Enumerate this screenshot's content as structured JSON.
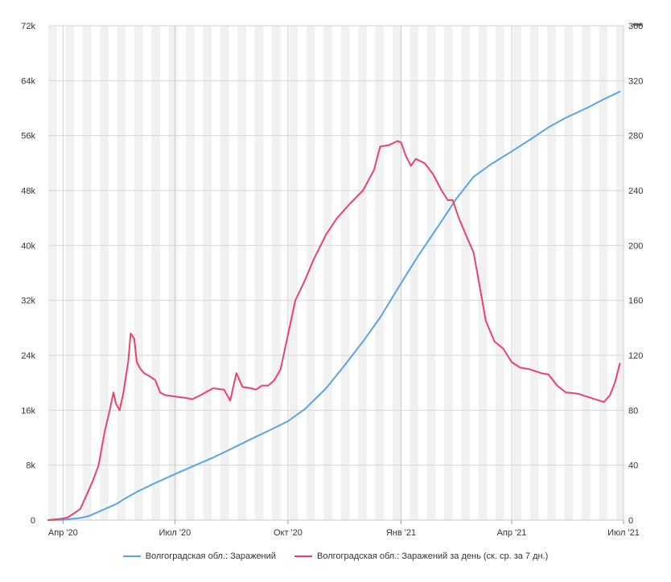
{
  "chart_data": {
    "type": "line",
    "x_tick_labels": [
      "Апр '20",
      "Июл '20",
      "Окт '20",
      "Янв '21",
      "Апр '21",
      "Июл '21"
    ],
    "x_tick_dates": [
      "2020-04-01",
      "2020-07-01",
      "2020-10-01",
      "2021-01-01",
      "2021-04-01",
      "2021-07-01"
    ],
    "y_left": {
      "ticks": [
        "0",
        "8k",
        "16k",
        "24k",
        "32k",
        "40k",
        "48k",
        "56k",
        "64k",
        "72k"
      ],
      "range": [
        0,
        72000
      ]
    },
    "y_right": {
      "ticks": [
        "0",
        "40",
        "80",
        "120",
        "160",
        "200",
        "240",
        "280",
        "320",
        "360"
      ],
      "range": [
        0,
        360
      ]
    },
    "grid": true,
    "legend_position": "bottom",
    "series": [
      {
        "name": "Волгоградская обл.: Заражений",
        "axis": "left",
        "color": "#5ba4e3",
        "points": [
          [
            "2020-03-20",
            0
          ],
          [
            "2020-04-01",
            50
          ],
          [
            "2020-04-15",
            300
          ],
          [
            "2020-04-22",
            600
          ],
          [
            "2020-05-01",
            1300
          ],
          [
            "2020-05-15",
            2400
          ],
          [
            "2020-05-20",
            3000
          ],
          [
            "2020-06-01",
            4200
          ],
          [
            "2020-06-15",
            5400
          ],
          [
            "2020-07-01",
            6700
          ],
          [
            "2020-07-15",
            7800
          ],
          [
            "2020-08-01",
            9100
          ],
          [
            "2020-08-15",
            10300
          ],
          [
            "2020-09-01",
            11800
          ],
          [
            "2020-09-15",
            13000
          ],
          [
            "2020-10-01",
            14400
          ],
          [
            "2020-10-15",
            16200
          ],
          [
            "2020-11-01",
            19200
          ],
          [
            "2020-11-15",
            22300
          ],
          [
            "2020-12-01",
            26000
          ],
          [
            "2020-12-15",
            29500
          ],
          [
            "2021-01-01",
            34500
          ],
          [
            "2021-01-15",
            38500
          ],
          [
            "2021-02-01",
            43000
          ],
          [
            "2021-02-15",
            46800
          ],
          [
            "2021-03-01",
            50000
          ],
          [
            "2021-03-15",
            51800
          ],
          [
            "2021-04-01",
            53700
          ],
          [
            "2021-04-15",
            55300
          ],
          [
            "2021-05-01",
            57200
          ],
          [
            "2021-05-15",
            58600
          ],
          [
            "2021-06-01",
            60000
          ],
          [
            "2021-06-15",
            61300
          ],
          [
            "2021-06-28",
            62400
          ]
        ]
      },
      {
        "name": "Волгоградская обл.: Заражений за день (ск. ср. за 7 дн.)",
        "axis": "right",
        "color": "#e8436a",
        "points": [
          [
            "2020-03-20",
            0
          ],
          [
            "2020-03-31",
            1
          ],
          [
            "2020-04-05",
            2
          ],
          [
            "2020-04-10",
            5
          ],
          [
            "2020-04-15",
            8
          ],
          [
            "2020-04-20",
            18
          ],
          [
            "2020-04-25",
            28
          ],
          [
            "2020-04-30",
            40
          ],
          [
            "2020-05-05",
            65
          ],
          [
            "2020-05-09",
            80
          ],
          [
            "2020-05-12",
            93
          ],
          [
            "2020-05-14",
            85
          ],
          [
            "2020-05-17",
            80
          ],
          [
            "2020-05-20",
            92
          ],
          [
            "2020-05-24",
            115
          ],
          [
            "2020-05-26",
            136
          ],
          [
            "2020-05-29",
            132
          ],
          [
            "2020-05-31",
            115
          ],
          [
            "2020-06-03",
            110
          ],
          [
            "2020-06-06",
            107
          ],
          [
            "2020-06-10",
            105
          ],
          [
            "2020-06-15",
            102
          ],
          [
            "2020-06-19",
            93
          ],
          [
            "2020-06-23",
            91
          ],
          [
            "2020-07-01",
            90
          ],
          [
            "2020-07-10",
            89
          ],
          [
            "2020-07-15",
            88
          ],
          [
            "2020-07-22",
            91
          ],
          [
            "2020-08-01",
            96
          ],
          [
            "2020-08-10",
            95
          ],
          [
            "2020-08-15",
            87
          ],
          [
            "2020-08-20",
            107
          ],
          [
            "2020-08-25",
            97
          ],
          [
            "2020-09-01",
            96
          ],
          [
            "2020-09-05",
            95
          ],
          [
            "2020-09-10",
            98
          ],
          [
            "2020-09-15",
            98
          ],
          [
            "2020-09-20",
            102
          ],
          [
            "2020-09-25",
            110
          ],
          [
            "2020-10-01",
            135
          ],
          [
            "2020-10-07",
            160
          ],
          [
            "2020-10-15",
            175
          ],
          [
            "2020-10-22",
            190
          ],
          [
            "2020-11-01",
            208
          ],
          [
            "2020-11-10",
            220
          ],
          [
            "2020-11-20",
            230
          ],
          [
            "2020-12-01",
            240
          ],
          [
            "2020-12-10",
            255
          ],
          [
            "2020-12-15",
            272
          ],
          [
            "2020-12-22",
            273
          ],
          [
            "2020-12-29",
            276
          ],
          [
            "2021-01-01",
            275
          ],
          [
            "2021-01-05",
            265
          ],
          [
            "2021-01-09",
            258
          ],
          [
            "2021-01-13",
            263
          ],
          [
            "2021-01-20",
            260
          ],
          [
            "2021-01-27",
            252
          ],
          [
            "2021-02-03",
            240
          ],
          [
            "2021-02-08",
            233
          ],
          [
            "2021-02-12",
            233
          ],
          [
            "2021-02-17",
            220
          ],
          [
            "2021-02-24",
            205
          ],
          [
            "2021-03-01",
            195
          ],
          [
            "2021-03-06",
            170
          ],
          [
            "2021-03-11",
            145
          ],
          [
            "2021-03-18",
            130
          ],
          [
            "2021-03-25",
            125
          ],
          [
            "2021-04-01",
            115
          ],
          [
            "2021-04-08",
            111
          ],
          [
            "2021-04-15",
            110
          ],
          [
            "2021-04-25",
            107
          ],
          [
            "2021-05-01",
            106
          ],
          [
            "2021-05-08",
            98
          ],
          [
            "2021-05-15",
            93
          ],
          [
            "2021-05-25",
            92
          ],
          [
            "2021-06-01",
            90
          ],
          [
            "2021-06-08",
            88
          ],
          [
            "2021-06-15",
            86
          ],
          [
            "2021-06-20",
            91
          ],
          [
            "2021-06-24",
            100
          ],
          [
            "2021-06-28",
            114
          ]
        ]
      }
    ]
  },
  "menu_icon": "more-dots-icon"
}
